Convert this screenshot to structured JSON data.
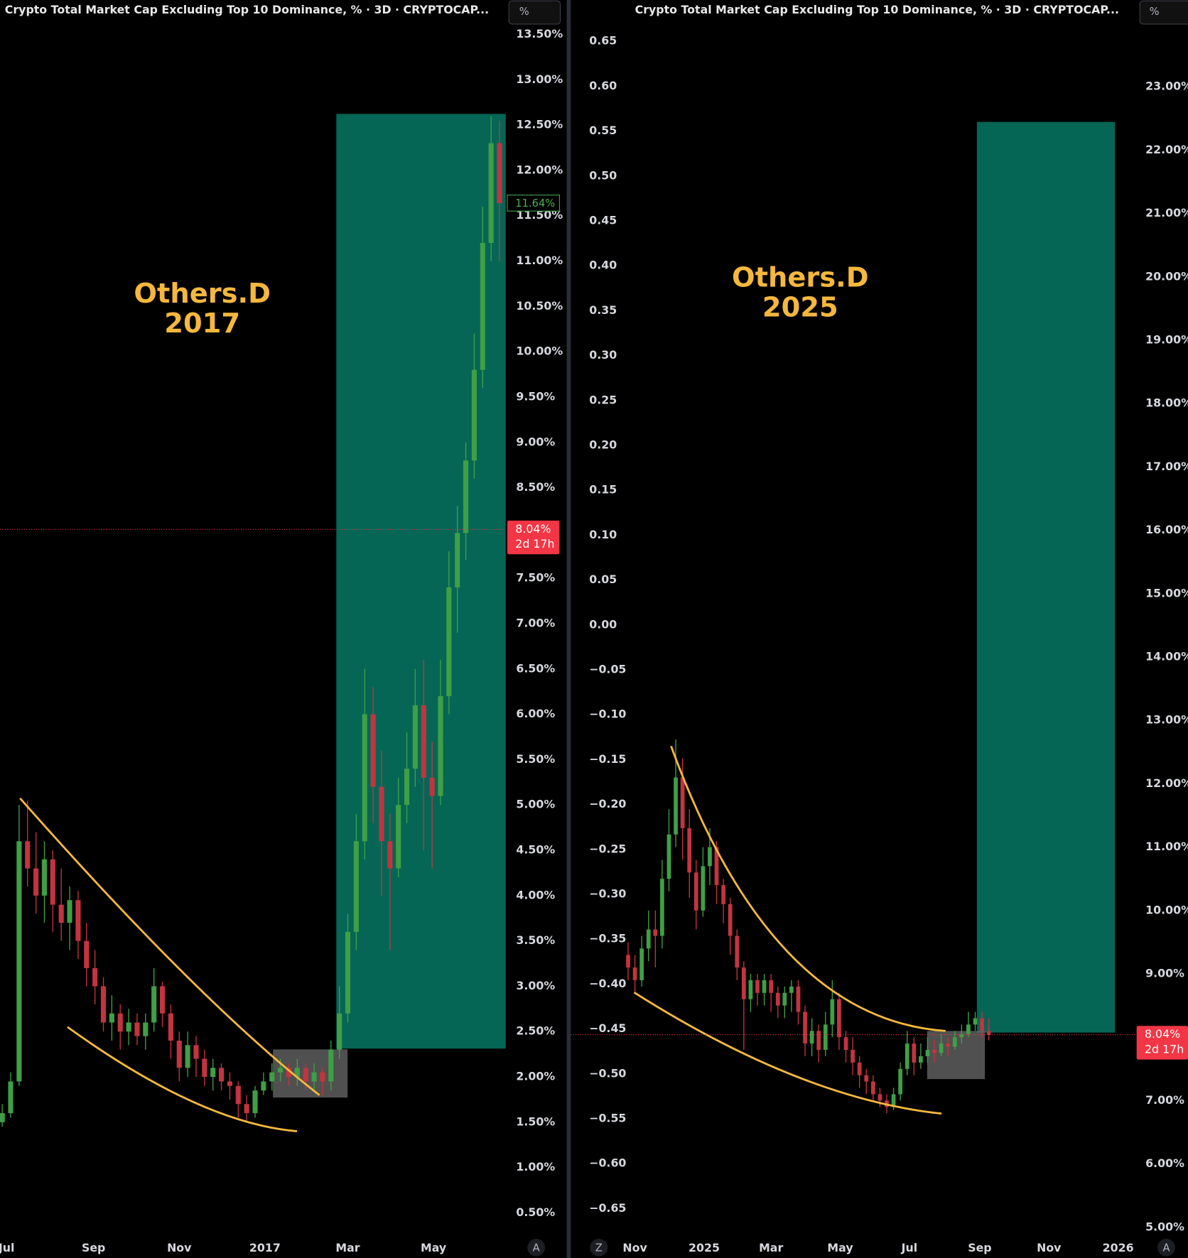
{
  "chart_data": [
    {
      "type": "candlestick",
      "title": "Crypto Total Market Cap Excluding Top 10 Dominance, % · 3D · CRYPTOCAP...",
      "scale_button": "%",
      "auto_button": "A",
      "annotation": [
        "Others.D",
        "2017"
      ],
      "up_color": "#3f9f46",
      "down_color": "#c23440",
      "xlim": [
        -4.6,
        355.4
      ],
      "ylim": [
        0.25,
        13.88
      ],
      "xticks": [
        {
          "value": 0,
          "label": "Jul"
        },
        {
          "value": 62,
          "label": "Sep"
        },
        {
          "value": 123,
          "label": "Nov"
        },
        {
          "value": 184,
          "label": "2017"
        },
        {
          "value": 243,
          "label": "Mar"
        },
        {
          "value": 304,
          "label": "May"
        }
      ],
      "yticks": [
        {
          "value": 0.5,
          "label": "0.50%"
        },
        {
          "value": 1,
          "label": "1.00%"
        },
        {
          "value": 1.5,
          "label": "1.50%"
        },
        {
          "value": 2,
          "label": "2.00%"
        },
        {
          "value": 2.5,
          "label": "2.50%"
        },
        {
          "value": 3,
          "label": "3.00%"
        },
        {
          "value": 3.5,
          "label": "3.50%"
        },
        {
          "value": 4,
          "label": "4.00%"
        },
        {
          "value": 4.5,
          "label": "4.50%"
        },
        {
          "value": 5,
          "label": "5.00%"
        },
        {
          "value": 5.5,
          "label": "5.50%"
        },
        {
          "value": 6,
          "label": "6.00%"
        },
        {
          "value": 6.5,
          "label": "6.50%"
        },
        {
          "value": 7,
          "label": "7.00%"
        },
        {
          "value": 7.5,
          "label": "7.50%"
        },
        {
          "value": 8.5,
          "label": "8.50%"
        },
        {
          "value": 9,
          "label": "9.00%"
        },
        {
          "value": 9.5,
          "label": "9.50%"
        },
        {
          "value": 10,
          "label": "10.00%"
        },
        {
          "value": 10.5,
          "label": "10.50%"
        },
        {
          "value": 11,
          "label": "11.00%"
        },
        {
          "value": 11.5,
          "label": "11.50%"
        },
        {
          "value": 12,
          "label": "12.00%"
        },
        {
          "value": 12.5,
          "label": "12.50%"
        },
        {
          "value": 13,
          "label": "13.00%"
        },
        {
          "value": 13.5,
          "label": "13.50%"
        }
      ],
      "last_price": {
        "value": 11.64,
        "label": "11.64%"
      },
      "price_line": {
        "value": 8.04,
        "label": "8.04%",
        "countdown": "2d 17h"
      },
      "x": [
        -3,
        3,
        9,
        15,
        21,
        27,
        33,
        39,
        45,
        51,
        57,
        63,
        69,
        75,
        81,
        87,
        93,
        99,
        105,
        111,
        117,
        123,
        129,
        135,
        141,
        147,
        153,
        159,
        165,
        171,
        177,
        183,
        189,
        195,
        201,
        207,
        213,
        219,
        225,
        231,
        237,
        243,
        249,
        255,
        261,
        267,
        273,
        279,
        285,
        291,
        297,
        303,
        309,
        315,
        321,
        327,
        333,
        339,
        345,
        351
      ],
      "open": [
        1.5,
        1.6,
        1.95,
        4.6,
        4.3,
        4.0,
        4.4,
        3.9,
        3.7,
        3.95,
        3.5,
        3.2,
        3.0,
        2.6,
        2.7,
        2.5,
        2.6,
        2.45,
        2.6,
        3.0,
        2.7,
        2.4,
        2.1,
        2.35,
        2.2,
        2.0,
        2.1,
        1.95,
        1.9,
        1.7,
        1.6,
        1.85,
        1.95,
        2.05,
        2.1,
        2.0,
        2.1,
        1.95,
        2.05,
        1.95,
        2.3,
        2.7,
        3.6,
        4.6,
        6.0,
        5.2,
        4.6,
        4.3,
        5.0,
        5.4,
        6.1,
        5.3,
        5.1,
        6.2,
        7.4,
        8.0,
        8.8,
        9.8,
        11.2,
        12.3
      ],
      "high": [
        1.7,
        2.05,
        5.0,
        5.05,
        4.7,
        4.6,
        4.5,
        4.3,
        4.1,
        4.05,
        3.7,
        3.4,
        3.1,
        2.9,
        2.8,
        2.75,
        2.7,
        2.7,
        3.2,
        3.05,
        2.8,
        2.5,
        2.5,
        2.45,
        2.3,
        2.2,
        2.15,
        2.05,
        1.95,
        1.8,
        1.9,
        2.05,
        2.15,
        2.2,
        2.15,
        2.2,
        2.15,
        2.15,
        2.1,
        2.4,
        3.0,
        3.8,
        4.9,
        6.5,
        6.3,
        5.6,
        4.9,
        5.3,
        5.8,
        6.5,
        6.6,
        5.7,
        6.6,
        7.8,
        8.3,
        9.0,
        10.2,
        11.6,
        12.6,
        12.55
      ],
      "low": [
        1.45,
        1.55,
        1.9,
        4.1,
        3.8,
        3.7,
        3.6,
        3.5,
        3.4,
        3.3,
        3.0,
        2.8,
        2.5,
        2.4,
        2.3,
        2.35,
        2.35,
        2.3,
        2.5,
        2.55,
        2.2,
        1.95,
        2.0,
        2.0,
        1.9,
        1.85,
        1.85,
        1.75,
        1.55,
        1.5,
        1.55,
        1.8,
        1.85,
        1.95,
        1.9,
        1.9,
        1.85,
        1.85,
        1.8,
        1.85,
        2.2,
        2.6,
        3.4,
        4.4,
        4.8,
        4.0,
        3.4,
        4.2,
        4.8,
        5.2,
        4.5,
        4.3,
        5.0,
        6.0,
        6.9,
        7.7,
        8.6,
        9.6,
        11.0,
        11.0
      ],
      "close": [
        1.6,
        1.95,
        4.6,
        4.3,
        4.0,
        4.4,
        3.9,
        3.7,
        3.95,
        3.5,
        3.2,
        3.0,
        2.6,
        2.7,
        2.5,
        2.6,
        2.45,
        2.6,
        3.0,
        2.7,
        2.4,
        2.1,
        2.35,
        2.2,
        2.0,
        2.1,
        1.95,
        1.9,
        1.7,
        1.6,
        1.85,
        1.95,
        2.05,
        2.1,
        2.0,
        2.1,
        1.95,
        2.05,
        1.95,
        2.3,
        2.7,
        3.6,
        4.6,
        6.0,
        5.2,
        4.6,
        4.3,
        5.0,
        5.4,
        6.1,
        5.3,
        5.1,
        6.2,
        7.4,
        8.0,
        8.8,
        9.8,
        11.2,
        12.3,
        11.64
      ]
    },
    {
      "type": "candlestick",
      "title": "Crypto Total Market Cap Excluding Top 10 Dominance, % · 3D · CRYPTOCAP...",
      "scale_button": "%",
      "auto_button": "A",
      "zoom_button": "Z",
      "annotation": [
        "Others.D",
        "2025"
      ],
      "up_color": "#3f9f46",
      "down_color": "#c23440",
      "axis": "y2",
      "xlim": [
        -56.6,
        441.6
      ],
      "ylim": [
        -0.68,
        0.696
      ],
      "y2lim": [
        4.87,
        24.37
      ],
      "xticks": [
        {
          "value": 0,
          "label": "Nov"
        },
        {
          "value": 61,
          "label": "2025"
        },
        {
          "value": 120,
          "label": "Mar"
        },
        {
          "value": 181,
          "label": "May"
        },
        {
          "value": 242,
          "label": "Jul"
        },
        {
          "value": 304,
          "label": "Sep"
        },
        {
          "value": 365,
          "label": "Nov"
        },
        {
          "value": 426,
          "label": "2026"
        }
      ],
      "yticks": [
        0.65,
        {
          "value": 0.6,
          "label": "0.60"
        },
        0.55,
        {
          "value": 0.5,
          "label": "0.50"
        },
        0.45,
        {
          "value": 0.4,
          "label": "0.40"
        },
        0.35,
        {
          "value": 0.3,
          "label": "0.30"
        },
        0.25,
        {
          "value": 0.2,
          "label": "0.20"
        },
        0.15,
        {
          "value": 0.1,
          "label": "0.10"
        },
        0.05,
        {
          "value": 0,
          "label": "0.00"
        },
        {
          "value": -0.05,
          "label": "−0.05"
        },
        {
          "value": -0.1,
          "label": "−0.10"
        },
        {
          "value": -0.15,
          "label": "−0.15"
        },
        {
          "value": -0.2,
          "label": "−0.20"
        },
        {
          "value": -0.25,
          "label": "−0.25"
        },
        {
          "value": -0.3,
          "label": "−0.30"
        },
        {
          "value": -0.35,
          "label": "−0.35"
        },
        {
          "value": -0.4,
          "label": "−0.40"
        },
        {
          "value": -0.45,
          "label": "−0.45"
        },
        {
          "value": -0.5,
          "label": "−0.50"
        },
        {
          "value": -0.55,
          "label": "−0.55"
        },
        {
          "value": -0.6,
          "label": "−0.60"
        },
        {
          "value": -0.65,
          "label": "−0.65"
        }
      ],
      "y2ticks": [
        {
          "value": 5,
          "label": "5.00%"
        },
        {
          "value": 6,
          "label": "6.00%"
        },
        {
          "value": 7,
          "label": "7.00%"
        },
        {
          "value": 9,
          "label": "9.00%"
        },
        {
          "value": 10,
          "label": "10.00%"
        },
        {
          "value": 11,
          "label": "11.00%"
        },
        {
          "value": 12,
          "label": "12.00%"
        },
        {
          "value": 13,
          "label": "13.00%"
        },
        {
          "value": 14,
          "label": "14.00%"
        },
        {
          "value": 15,
          "label": "15.00%"
        },
        {
          "value": 16,
          "label": "16.00%"
        },
        {
          "value": 17,
          "label": "17.00%"
        },
        {
          "value": 18,
          "label": "18.00%"
        },
        {
          "value": 19,
          "label": "19.00%"
        },
        {
          "value": 20,
          "label": "20.00%"
        },
        {
          "value": 21,
          "label": "21.00%"
        },
        {
          "value": 22,
          "label": "22.00%"
        },
        {
          "value": 23,
          "label": "23.00%"
        }
      ],
      "price_line": {
        "value": 8.04,
        "label": "8.04%",
        "countdown": "2d 17h"
      },
      "x": [
        -6,
        0,
        6,
        12,
        18,
        24,
        30,
        36,
        42,
        48,
        54,
        60,
        66,
        72,
        78,
        84,
        90,
        96,
        102,
        108,
        114,
        120,
        126,
        132,
        138,
        144,
        150,
        156,
        162,
        168,
        174,
        180,
        186,
        192,
        198,
        204,
        210,
        216,
        222,
        228,
        234,
        240,
        246,
        252,
        258,
        264,
        270,
        276,
        282,
        288,
        294,
        300,
        306,
        312
      ],
      "open": [
        9.3,
        9.1,
        8.9,
        9.4,
        9.7,
        9.6,
        10.5,
        11.2,
        12.1,
        11.3,
        10.6,
        10.0,
        10.7,
        11.0,
        10.4,
        10.1,
        9.6,
        9.1,
        8.6,
        8.9,
        8.7,
        8.9,
        8.7,
        8.5,
        8.7,
        8.8,
        8.4,
        7.9,
        8.1,
        7.8,
        8.2,
        8.6,
        8.0,
        7.8,
        7.6,
        7.4,
        7.3,
        7.1,
        7.0,
        6.9,
        7.1,
        7.5,
        7.9,
        7.6,
        7.7,
        7.8,
        7.75,
        7.9,
        7.85,
        8.0,
        8.05,
        8.2,
        8.3,
        8.1
      ],
      "high": [
        9.5,
        9.3,
        9.6,
        10.0,
        10.0,
        10.8,
        11.6,
        12.7,
        12.4,
        11.6,
        10.8,
        11.0,
        11.3,
        11.1,
        10.5,
        10.2,
        9.7,
        9.2,
        9.0,
        9.0,
        9.0,
        9.0,
        8.8,
        8.8,
        8.9,
        8.9,
        8.5,
        8.3,
        8.2,
        8.4,
        8.9,
        8.7,
        8.1,
        8.0,
        7.7,
        7.5,
        7.4,
        7.2,
        7.1,
        7.2,
        7.6,
        8.1,
        8.0,
        7.9,
        8.0,
        7.95,
        8.05,
        8.0,
        8.1,
        8.2,
        8.4,
        8.4,
        8.4,
        8.3
      ],
      "low": [
        8.9,
        8.7,
        8.8,
        9.2,
        9.1,
        9.4,
        10.3,
        11.0,
        10.8,
        10.2,
        9.7,
        9.9,
        10.4,
        10.1,
        9.8,
        9.3,
        8.9,
        7.8,
        8.4,
        8.5,
        8.5,
        8.4,
        8.3,
        8.3,
        8.4,
        8.2,
        7.7,
        7.7,
        7.6,
        7.7,
        8.0,
        7.8,
        7.6,
        7.4,
        7.2,
        7.1,
        7.0,
        6.9,
        6.8,
        6.85,
        7.0,
        7.4,
        7.4,
        7.5,
        7.6,
        7.6,
        7.7,
        7.7,
        7.8,
        7.9,
        8.0,
        8.1,
        8.0,
        7.95
      ],
      "close": [
        9.1,
        8.9,
        9.4,
        9.7,
        9.6,
        10.5,
        11.2,
        12.1,
        11.3,
        10.6,
        10.0,
        10.7,
        11.0,
        10.4,
        10.1,
        9.6,
        9.1,
        8.6,
        8.9,
        8.7,
        8.9,
        8.7,
        8.5,
        8.7,
        8.8,
        8.4,
        7.9,
        8.1,
        7.8,
        8.2,
        8.6,
        8.0,
        7.8,
        7.6,
        7.4,
        7.3,
        7.1,
        7.0,
        6.9,
        7.1,
        7.5,
        7.9,
        7.6,
        7.7,
        7.8,
        7.75,
        7.9,
        7.85,
        8.0,
        8.05,
        8.2,
        8.3,
        8.1,
        8.04
      ]
    }
  ]
}
